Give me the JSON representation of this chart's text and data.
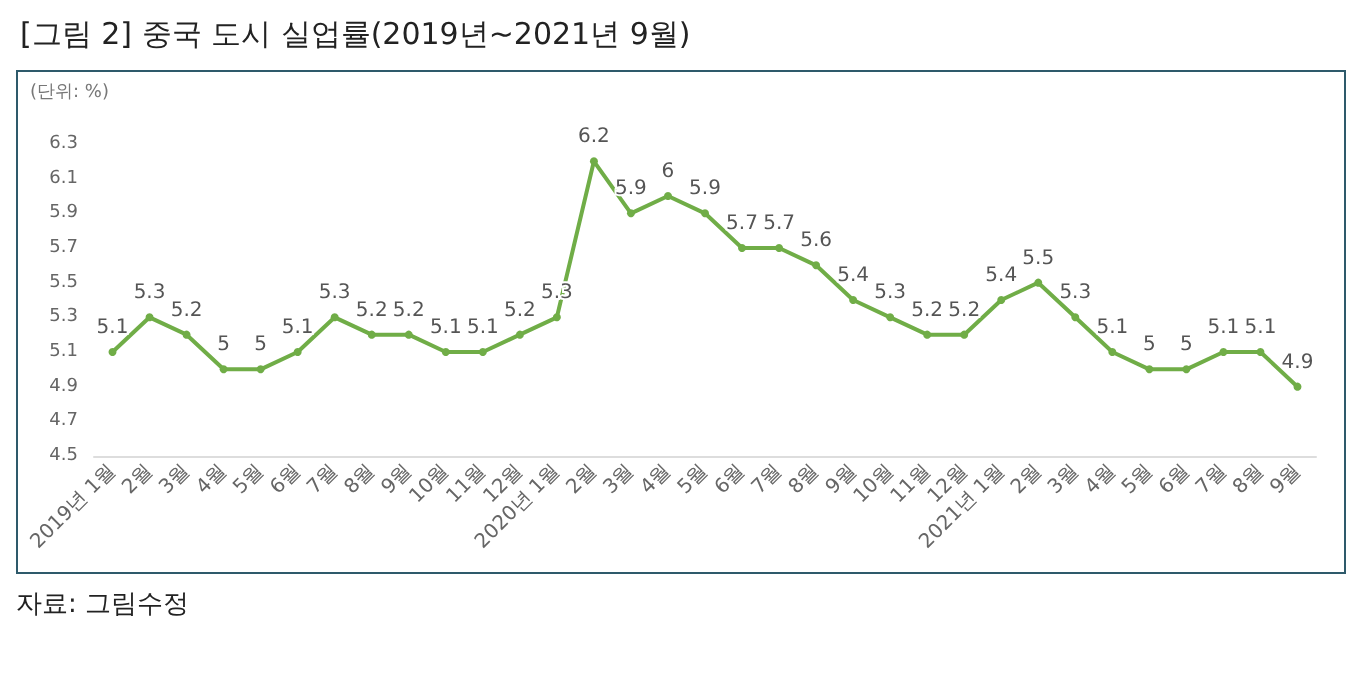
{
  "chart_data": {
    "type": "line",
    "title": "[그림 2] 중국 도시 실업률(2019년~2021년 9월)",
    "ylabel": "(단위: %)",
    "categories": [
      "2019년 1월",
      "2월",
      "3월",
      "4월",
      "5월",
      "6월",
      "7월",
      "8월",
      "9월",
      "10월",
      "11월",
      "12월",
      "2020년 1월",
      "2월",
      "3월",
      "4월",
      "5월",
      "6월",
      "7월",
      "8월",
      "9월",
      "10월",
      "11월",
      "12월",
      "2021년 1월",
      "2월",
      "3월",
      "4월",
      "5월",
      "6월",
      "7월",
      "8월",
      "9월"
    ],
    "series": [
      {
        "color": "#70ad47",
        "values": [
          5.1,
          5.3,
          5.2,
          5,
          5,
          5.1,
          5.3,
          5.2,
          5.2,
          5.1,
          5.1,
          5.2,
          5.3,
          6.2,
          5.9,
          6,
          5.9,
          5.7,
          5.7,
          5.6,
          5.4,
          5.3,
          5.2,
          5.2,
          5.4,
          5.5,
          5.3,
          5.1,
          5,
          5,
          5.1,
          5.1,
          4.9
        ]
      }
    ],
    "ylim": [
      4.5,
      6.3
    ],
    "yticks": [
      4.5,
      4.7,
      4.9,
      5.1,
      5.3,
      5.5,
      5.7,
      5.9,
      6.1,
      6.3
    ],
    "data_labels": true,
    "grid": false,
    "marker": "circle",
    "line_style": "solid",
    "annotations": [
      "자료: 그림수정"
    ]
  }
}
